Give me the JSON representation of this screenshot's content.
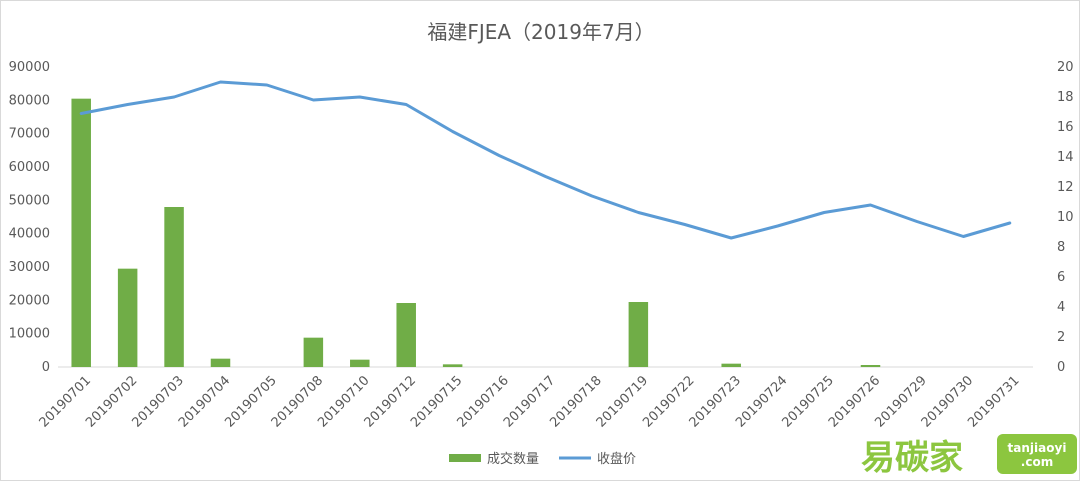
{
  "chart_data": {
    "title": "福建FJEA（2019年7月）",
    "categories": [
      "20190701",
      "20190702",
      "20190703",
      "20190704",
      "20190705",
      "20190708",
      "20190710",
      "20190712",
      "20190715",
      "20190716",
      "20190717",
      "20190718",
      "20190719",
      "20190722",
      "20190723",
      "20190724",
      "20190725",
      "20190726",
      "20190729",
      "20190730",
      "20190731"
    ],
    "series": [
      {
        "name": "成交数量",
        "type": "bar",
        "axis": "left",
        "color": "#70ad47",
        "values": [
          80500,
          29500,
          48000,
          2500,
          0,
          8800,
          2200,
          19200,
          800,
          0,
          0,
          0,
          19500,
          0,
          1000,
          0,
          0,
          600,
          0,
          0,
          0
        ]
      },
      {
        "name": "收盘价",
        "type": "line",
        "axis": "right",
        "color": "#5b9bd5",
        "values": [
          16.9,
          17.5,
          18.0,
          19.0,
          18.8,
          17.8,
          18.0,
          17.5,
          15.7,
          14.1,
          12.7,
          11.4,
          10.3,
          9.5,
          8.6,
          9.4,
          10.3,
          10.8,
          9.7,
          8.7,
          9.6
        ]
      }
    ],
    "y_left": {
      "min": 0,
      "max": 90000,
      "ticks": [
        0,
        10000,
        20000,
        30000,
        40000,
        50000,
        60000,
        70000,
        80000,
        90000
      ]
    },
    "y_right": {
      "min": 0,
      "max": 20,
      "ticks": [
        0,
        2,
        4,
        6,
        8,
        10,
        12,
        14,
        16,
        18,
        20
      ]
    },
    "legend_position": "bottom-center",
    "grid": false
  },
  "watermark": {
    "cn_text": "易碳家",
    "en_text": "tanjiaoyi",
    "domain_suffix": ".com"
  }
}
